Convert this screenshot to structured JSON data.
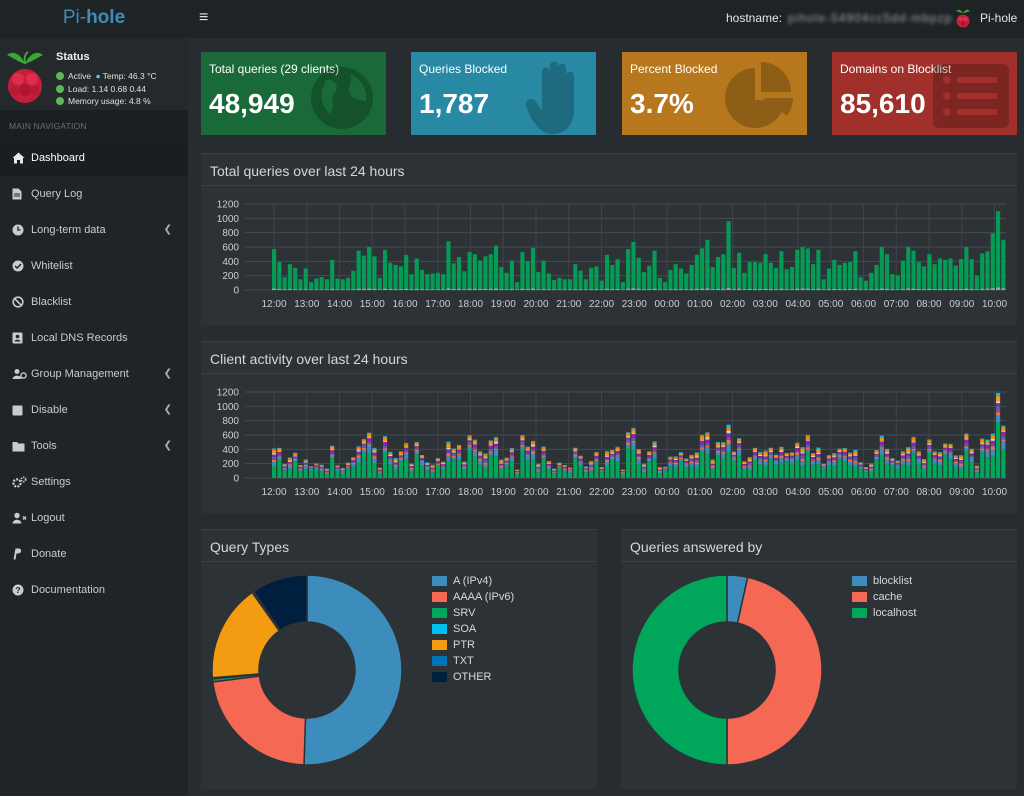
{
  "header": {
    "logo_pre": "Pi-",
    "logo_bold": "hole",
    "menu_glyph": "≡",
    "hostname_label": "hostname:",
    "hostname_value": "pihole-54904cc5dd-mbpzp",
    "user_label": "Pi-hole"
  },
  "status": {
    "title": "Status",
    "active": "Active",
    "temp": "Temp: 46.3 °C",
    "load": "Load:  1.14  0.68  0.44",
    "memory": "Memory usage:  4.8 %"
  },
  "sidebar": {
    "heading": "MAIN NAVIGATION",
    "items": [
      {
        "label": "Dashboard",
        "icon": "home-icon"
      },
      {
        "label": "Query Log",
        "icon": "file-icon"
      },
      {
        "label": "Long-term data",
        "icon": "clock-icon"
      },
      {
        "label": "Whitelist",
        "icon": "check-circle-icon"
      },
      {
        "label": "Blacklist",
        "icon": "ban-icon"
      },
      {
        "label": "Local DNS Records",
        "icon": "address-card-icon"
      },
      {
        "label": "Group Management",
        "icon": "users-cog-icon"
      },
      {
        "label": "Disable",
        "icon": "stop-icon"
      },
      {
        "label": "Tools",
        "icon": "folder-icon"
      },
      {
        "label": "Settings",
        "icon": "cogs-icon"
      },
      {
        "label": "Logout",
        "icon": "user-times-icon"
      },
      {
        "label": "Donate",
        "icon": "paypal-icon"
      },
      {
        "label": "Documentation",
        "icon": "question-circle-icon"
      }
    ]
  },
  "stats": [
    {
      "label": "Total queries (29 clients)",
      "value": "48,949",
      "color": "#00a65a",
      "icon": "globe-icon"
    },
    {
      "label": "Queries Blocked",
      "value": "1,787",
      "color": "#00c0ef",
      "icon": "hand-icon"
    },
    {
      "label": "Percent Blocked",
      "value": "3.7%",
      "color": "#f39c12",
      "icon": "pie-chart-icon"
    },
    {
      "label": "Domains on Blocklist",
      "value": "85,610",
      "color": "#dd4b39",
      "icon": "list-icon"
    }
  ],
  "boxes": {
    "total_title": "Total queries over last 24 hours",
    "client_title": "Client activity over last 24 hours",
    "types_title": "Query Types",
    "answered_title": "Queries answered by"
  },
  "chart_data": [
    {
      "type": "bar",
      "title": "Total queries over last 24 hours",
      "ylim": [
        0,
        1200
      ],
      "y_ticks": [
        "1200",
        "1000",
        "800",
        "600",
        "400",
        "200",
        "0"
      ],
      "x_ticks": [
        "12:00",
        "13:00",
        "14:00",
        "15:00",
        "16:00",
        "17:00",
        "18:00",
        "19:00",
        "20:00",
        "21:00",
        "22:00",
        "23:00",
        "00:00",
        "01:00",
        "02:00",
        "03:00",
        "04:00",
        "05:00",
        "06:00",
        "07:00",
        "08:00",
        "09:00",
        "10:00"
      ],
      "values": [
        570,
        390,
        180,
        360,
        310,
        150,
        300,
        110,
        160,
        180,
        150,
        420,
        160,
        150,
        170,
        270,
        550,
        480,
        600,
        470,
        170,
        560,
        380,
        350,
        330,
        490,
        220,
        440,
        280,
        220,
        230,
        240,
        220,
        680,
        370,
        460,
        260,
        530,
        500,
        410,
        470,
        500,
        620,
        320,
        240,
        410,
        110,
        530,
        400,
        590,
        250,
        410,
        230,
        140,
        170,
        150,
        150,
        360,
        270,
        150,
        310,
        330,
        130,
        490,
        350,
        430,
        110,
        570,
        670,
        450,
        250,
        340,
        550,
        170,
        110,
        280,
        360,
        300,
        230,
        350,
        490,
        580,
        700,
        320,
        460,
        500,
        960,
        310,
        520,
        240,
        390,
        390,
        380,
        500,
        380,
        310,
        540,
        290,
        320,
        560,
        600,
        580,
        360,
        560,
        150,
        300,
        420,
        350,
        380,
        390,
        540,
        180,
        130,
        240,
        350,
        600,
        500,
        220,
        200,
        410,
        600,
        550,
        390,
        330,
        500,
        360,
        440,
        420,
        440,
        340,
        430,
        600,
        430,
        200,
        510,
        540,
        790,
        1100,
        700
      ],
      "series": [
        {
          "name": "blocked",
          "values": [
            20,
            15,
            10,
            12,
            10,
            8,
            10,
            6,
            8,
            8,
            8,
            15,
            8,
            8,
            8,
            10,
            18,
            16,
            20,
            16,
            8,
            18,
            14,
            12,
            12,
            16,
            10,
            15,
            10,
            10,
            10,
            10,
            10,
            22,
            14,
            16,
            10,
            18,
            16,
            14,
            16,
            16,
            20,
            12,
            10,
            14,
            6,
            18,
            14,
            20,
            10,
            14,
            10,
            8,
            8,
            8,
            8,
            12,
            10,
            8,
            12,
            12,
            8,
            16,
            12,
            14,
            6,
            18,
            22,
            16,
            10,
            12,
            18,
            8,
            6,
            10,
            12,
            12,
            10,
            12,
            16,
            18,
            22,
            12,
            16,
            16,
            30,
            12,
            18,
            10,
            14,
            14,
            14,
            16,
            14,
            12,
            18,
            10,
            12,
            18,
            20,
            18,
            12,
            18,
            8,
            12,
            14,
            12,
            14,
            14,
            18,
            8,
            8,
            10,
            12,
            20,
            16,
            10,
            8,
            14,
            20,
            18,
            14,
            12,
            16,
            12,
            14,
            14,
            14,
            12,
            14,
            20,
            14,
            8,
            16,
            18,
            25,
            35,
            22
          ]
        }
      ]
    },
    {
      "type": "bar",
      "title": "Client activity over last 24 hours",
      "stacked": true,
      "ylim": [
        0,
        1200
      ],
      "y_ticks": [
        "1200",
        "1000",
        "800",
        "600",
        "400",
        "200",
        "0"
      ],
      "x_ticks": [
        "12:00",
        "13:00",
        "14:00",
        "15:00",
        "16:00",
        "17:00",
        "18:00",
        "19:00",
        "20:00",
        "21:00",
        "22:00",
        "23:00",
        "00:00",
        "01:00",
        "02:00",
        "03:00",
        "04:00",
        "05:00",
        "06:00",
        "07:00",
        "08:00",
        "09:00",
        "10:00"
      ],
      "palette": [
        "#00a65a",
        "#3c8dbc",
        "#f56954",
        "#605ca8",
        "#8e24aa",
        "#d2d6de",
        "#f39c12",
        "#ff851b",
        "#00c0ef",
        "#39cccc",
        "#01ff70",
        "#111111"
      ]
    },
    {
      "type": "pie",
      "title": "Query Types",
      "labels": [
        "A (IPv4)",
        "AAAA (IPv6)",
        "SRV",
        "SOA",
        "PTR",
        "TXT",
        "OTHER"
      ],
      "values": [
        50.5,
        22.5,
        0.5,
        0.2,
        16.5,
        0.3,
        9.5
      ],
      "colors": [
        "#3c8dbc",
        "#f56954",
        "#00a65a",
        "#00c0ef",
        "#f39c12",
        "#0073b7",
        "#001f3f"
      ]
    },
    {
      "type": "pie",
      "title": "Queries answered by",
      "labels": [
        "blocklist",
        "cache",
        "localhost"
      ],
      "values": [
        3.5,
        46.5,
        50.0
      ],
      "colors": [
        "#3c8dbc",
        "#f56954",
        "#00a65a"
      ]
    }
  ]
}
